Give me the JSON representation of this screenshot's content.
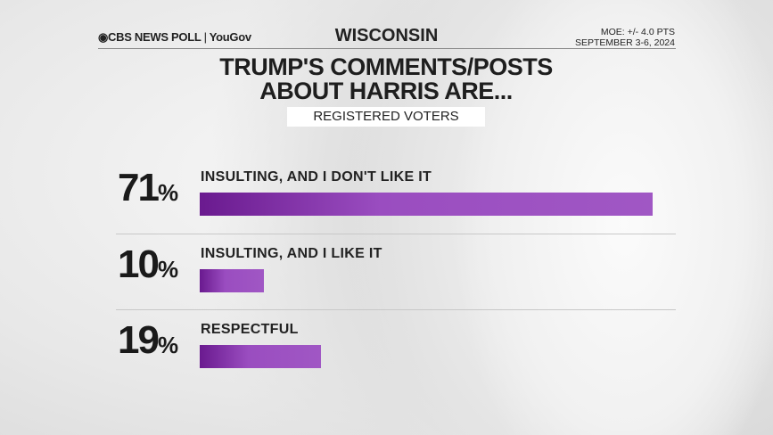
{
  "header": {
    "logo": "CBS NEWS POLL",
    "logo_partner": "YouGov",
    "state": "WISCONSIN",
    "moe": "MOE: +/- 4.0 PTS",
    "dates": "SEPTEMBER 3-6, 2024"
  },
  "chart_data": {
    "type": "bar",
    "orientation": "horizontal",
    "title": "TRUMP'S COMMENTS/POSTS ABOUT HARRIS ARE...",
    "subtitle": "REGISTERED VOTERS",
    "categories": [
      "INSULTING, AND I DON'T LIKE IT",
      "INSULTING, AND I LIKE IT",
      "RESPECTFUL"
    ],
    "values": [
      71,
      10,
      19
    ],
    "value_labels": [
      "71",
      "10",
      "19"
    ],
    "unit": "%",
    "bar_color": "#8e44b8",
    "xlim": [
      0,
      71
    ]
  }
}
